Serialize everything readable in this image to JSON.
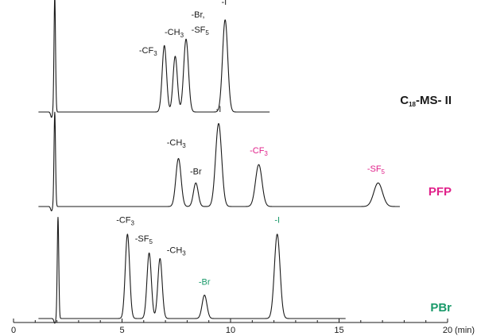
{
  "chart_data": {
    "type": "line",
    "title": "",
    "xlabel": "(min)",
    "ylabel": "",
    "xlim": [
      0,
      20
    ],
    "x_ticks": [
      "0",
      "5",
      "10",
      "15",
      "20"
    ],
    "colors": {
      "trace": "#1a1a1a",
      "pfp": "#e0218a",
      "pbr": "#1a9a6a",
      "label_default": "#1a1a1a"
    },
    "series": [
      {
        "name": "C18-MS- II",
        "label_main": "C",
        "label_sub": "18",
        "label_tail": "-MS- II",
        "color": "#1a1a1a",
        "x_end": 11.8,
        "void_peak": 1.9,
        "peaks": [
          {
            "rt": 6.95,
            "height": 0.62,
            "width": 0.1
          },
          {
            "rt": 7.45,
            "height": 0.52,
            "width": 0.1
          },
          {
            "rt": 7.95,
            "height": 0.68,
            "width": 0.11
          },
          {
            "rt": 9.75,
            "height": 0.86,
            "width": 0.12
          }
        ],
        "labels": [
          {
            "text": "-CF",
            "sub": "3",
            "rt": 6.2,
            "level": 0.55,
            "color": "#1a1a1a"
          },
          {
            "text": "-CH",
            "sub": "3",
            "rt": 7.4,
            "level": 0.72,
            "color": "#1a1a1a"
          },
          {
            "text": "-Br,",
            "sub": "",
            "rt": 8.5,
            "level": 0.88,
            "color": "#1a1a1a"
          },
          {
            "text": "-SF",
            "sub": "5",
            "rt": 8.6,
            "level": 0.74,
            "color": "#1a1a1a"
          },
          {
            "text": "-I",
            "sub": "",
            "rt": 9.7,
            "level": 1.0,
            "color": "#1a1a1a"
          }
        ]
      },
      {
        "name": "PFP",
        "label_main": "PFP",
        "label_sub": "",
        "label_tail": "",
        "color": "#e0218a",
        "x_end": 17.8,
        "void_peak": 1.9,
        "peaks": [
          {
            "rt": 7.6,
            "height": 0.55,
            "width": 0.12
          },
          {
            "rt": 8.4,
            "height": 0.27,
            "width": 0.11
          },
          {
            "rt": 9.45,
            "height": 0.95,
            "width": 0.14
          },
          {
            "rt": 11.3,
            "height": 0.48,
            "width": 0.15
          },
          {
            "rt": 16.8,
            "height": 0.27,
            "width": 0.2
          }
        ],
        "labels": [
          {
            "text": "-CH",
            "sub": "3",
            "rt": 7.5,
            "level": 0.7,
            "color": "#1a1a1a"
          },
          {
            "text": "-Br",
            "sub": "",
            "rt": 8.4,
            "level": 0.37,
            "color": "#1a1a1a"
          },
          {
            "text": "-I",
            "sub": "",
            "rt": 9.45,
            "level": 1.08,
            "color": "#1a1a1a"
          },
          {
            "text": "-CF",
            "sub": "3",
            "rt": 11.3,
            "level": 0.61,
            "color": "#e0218a"
          },
          {
            "text": "-SF",
            "sub": "5",
            "rt": 16.7,
            "level": 0.4,
            "color": "#e0218a"
          }
        ]
      },
      {
        "name": "PBr",
        "label_main": "PBr",
        "label_sub": "",
        "label_tail": "",
        "color": "#1a9a6a",
        "x_end": 15.3,
        "void_peak": 2.05,
        "peaks": [
          {
            "rt": 5.25,
            "height": 0.9,
            "width": 0.1
          },
          {
            "rt": 6.25,
            "height": 0.7,
            "width": 0.1
          },
          {
            "rt": 6.75,
            "height": 0.64,
            "width": 0.1
          },
          {
            "rt": 8.8,
            "height": 0.25,
            "width": 0.11
          },
          {
            "rt": 12.15,
            "height": 0.9,
            "width": 0.13
          }
        ],
        "labels": [
          {
            "text": "-CF",
            "sub": "3",
            "rt": 5.15,
            "level": 1.02,
            "color": "#1a1a1a"
          },
          {
            "text": "-SF",
            "sub": "5",
            "rt": 6.0,
            "level": 0.82,
            "color": "#1a1a1a"
          },
          {
            "text": "-CH",
            "sub": "3",
            "rt": 7.5,
            "level": 0.7,
            "color": "#1a1a1a"
          },
          {
            "text": "-Br",
            "sub": "",
            "rt": 8.8,
            "level": 0.36,
            "color": "#1a9a6a"
          },
          {
            "text": "-I",
            "sub": "",
            "rt": 12.15,
            "level": 1.02,
            "color": "#1a9a6a"
          }
        ]
      }
    ]
  }
}
